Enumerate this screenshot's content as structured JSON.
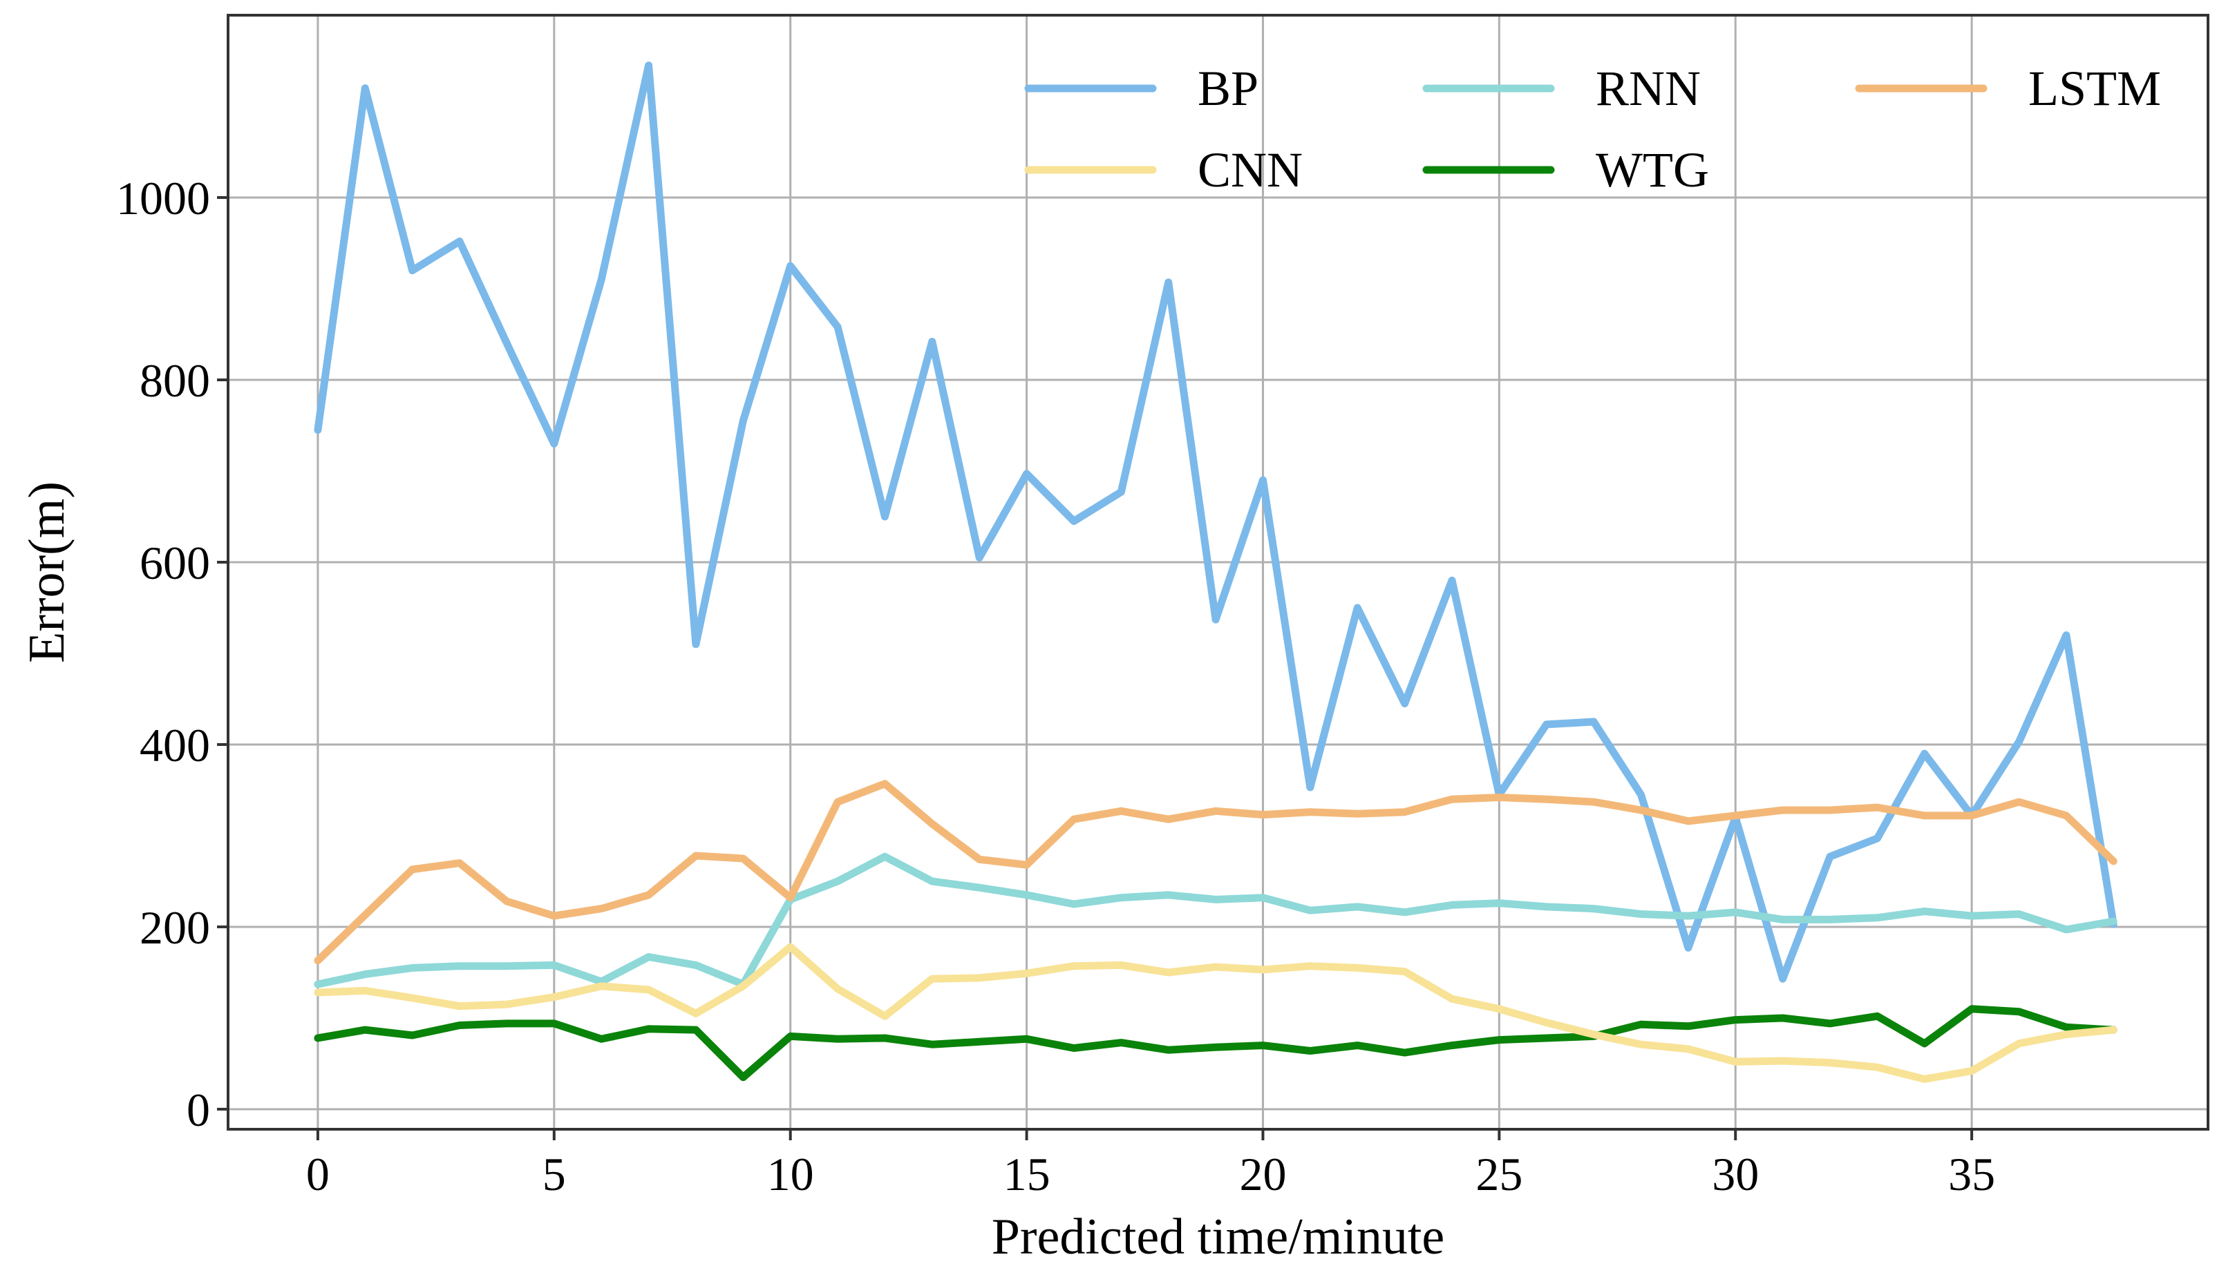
{
  "chart_data": {
    "type": "line",
    "title": "",
    "xlabel": "Predicted time/minute",
    "ylabel": "Error(m)",
    "xlim": [
      -1.9,
      40.0
    ],
    "ylim": [
      -22,
      1200
    ],
    "xticks": [
      0,
      5,
      10,
      15,
      20,
      25,
      30,
      35
    ],
    "xtick_labels": [
      "0",
      "5",
      "10",
      "15",
      "20",
      "25",
      "30",
      "35"
    ],
    "yticks": [
      0,
      200,
      400,
      600,
      800,
      1000
    ],
    "ytick_labels": [
      "0",
      "200",
      "400",
      "600",
      "800",
      "1000"
    ],
    "grid": true,
    "legend_position": "top-right",
    "legend_order": [
      0,
      3,
      1,
      2,
      4
    ],
    "x": [
      0,
      1,
      2,
      3,
      4,
      5,
      6,
      7,
      8,
      9,
      10,
      11,
      12,
      13,
      14,
      15,
      16,
      17,
      18,
      19,
      20,
      21,
      22,
      23,
      24,
      25,
      26,
      27,
      28,
      29,
      30,
      31,
      32,
      33,
      34,
      35,
      36,
      37,
      38
    ],
    "series": [
      {
        "name": "BP",
        "color": "#7bb9ea",
        "values": [
          745,
          1120,
          920,
          952,
          840,
          730,
          910,
          1145,
          510,
          755,
          925,
          858,
          650,
          842,
          605,
          697,
          645,
          677,
          907,
          537,
          690,
          353,
          550,
          445,
          580,
          345,
          422,
          425,
          345,
          177,
          320,
          143,
          277,
          297,
          390,
          322,
          403,
          520,
          203
        ]
      },
      {
        "name": "RNN",
        "color": "#8ed8d8",
        "values": [
          137,
          148,
          155,
          157,
          157,
          158,
          140,
          167,
          158,
          137,
          230,
          250,
          277,
          250,
          243,
          235,
          225,
          232,
          235,
          230,
          232,
          218,
          222,
          216,
          224,
          226,
          222,
          220,
          214,
          212,
          216,
          208,
          208,
          210,
          217,
          212,
          214,
          197,
          206
        ]
      },
      {
        "name": "WTG",
        "color": "#0a830a",
        "values": [
          78,
          87,
          81,
          92,
          94,
          94,
          77,
          88,
          87,
          35,
          80,
          77,
          78,
          71,
          74,
          77,
          67,
          73,
          65,
          68,
          70,
          64,
          70,
          62,
          70,
          76,
          78,
          80,
          93,
          91,
          98,
          100,
          94,
          102,
          72,
          110,
          107,
          90,
          87
        ]
      },
      {
        "name": "CNN",
        "color": "#f8e296",
        "values": [
          128,
          130,
          122,
          113,
          115,
          123,
          135,
          131,
          105,
          135,
          178,
          132,
          102,
          143,
          144,
          149,
          157,
          158,
          150,
          156,
          153,
          157,
          155,
          151,
          121,
          110,
          95,
          82,
          71,
          66,
          52,
          53,
          51,
          46,
          33,
          42,
          72,
          82,
          87
        ]
      },
      {
        "name": "LSTM",
        "color": "#f3b878",
        "values": [
          163,
          213,
          263,
          270,
          228,
          212,
          220,
          235,
          278,
          275,
          232,
          337,
          357,
          313,
          274,
          268,
          318,
          327,
          318,
          327,
          323,
          326,
          324,
          326,
          340,
          342,
          340,
          337,
          328,
          316,
          322,
          328,
          328,
          331,
          322,
          322,
          337,
          322,
          272
        ]
      }
    ]
  }
}
